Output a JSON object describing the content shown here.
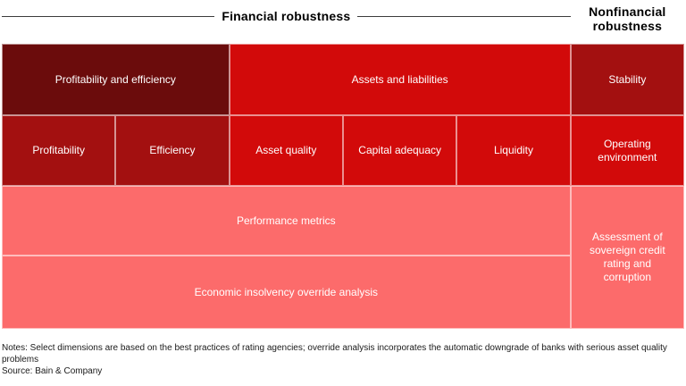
{
  "header": {
    "financial_label": "Financial robustness",
    "nonfinancial_label": "Nonfinancial robustness"
  },
  "matrix": {
    "row1": {
      "profitability_and_efficiency": "Profitability and efficiency",
      "assets_and_liabilities": "Assets and liabilities",
      "stability": "Stability"
    },
    "row2": {
      "profitability": "Profitability",
      "efficiency": "Efficiency",
      "asset_quality": "Asset quality",
      "capital_adequacy": "Capital adequacy",
      "liquidity": "Liquidity",
      "operating_environment": "Operating environment"
    },
    "row3": {
      "performance_metrics": "Performance metrics"
    },
    "row4": {
      "economic_insolvency_override": "Economic insolvency override analysis"
    },
    "right_span": {
      "sovereign_assessment": "Assessment of sovereign credit rating and corruption"
    }
  },
  "colors": {
    "dark_red": "#6b0c0c",
    "bright_red": "#d20a0a",
    "brick_red": "#a31010",
    "salmon": "#fc6b6b"
  },
  "notes": {
    "note_text": "Notes: Select dimensions are based on the best practices of rating agencies; override analysis incorporates the automatic downgrade of banks with serious asset quality problems",
    "source_text": "Source: Bain & Company"
  }
}
